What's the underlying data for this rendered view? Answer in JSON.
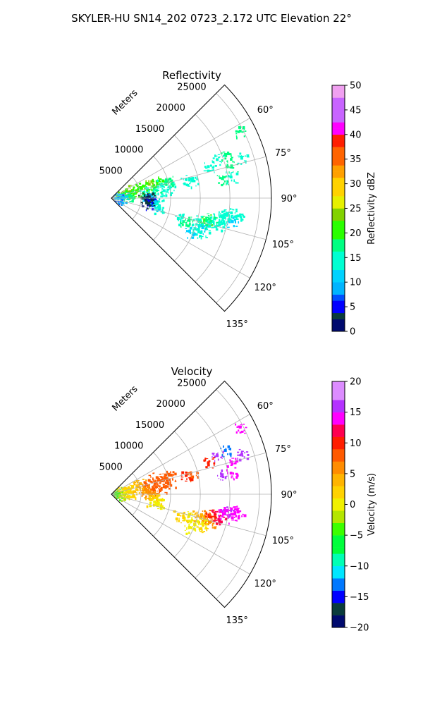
{
  "figure": {
    "title": "SKYLER-HU  SN14_202  0723_2.172 UTC Elevation 22°"
  },
  "chart_data": [
    {
      "type": "heatmap",
      "title": "Reflectivity",
      "radial_label": "Meters",
      "range_ticks": [
        5000,
        10000,
        15000,
        20000,
        25000
      ],
      "range_tick_labels": [
        "5000",
        "10000",
        "15000",
        "20000",
        "25000"
      ],
      "range_max": 27000,
      "azimuth_range": [
        45,
        135
      ],
      "azimuth_ticks": [
        60,
        75,
        90,
        105,
        120,
        135
      ],
      "azimuth_tick_labels": [
        "60°",
        "75°",
        "90°",
        "105°",
        "120°",
        "135°"
      ],
      "grid": true,
      "colorbar": {
        "label": "Reflectivity dBZ",
        "min": 0,
        "max": 50,
        "ticks": [
          0,
          5,
          10,
          15,
          20,
          25,
          30,
          35,
          40,
          45,
          50
        ],
        "tick_labels": [
          "0",
          "5",
          "10",
          "15",
          "20",
          "25",
          "30",
          "35",
          "40",
          "45",
          "50"
        ],
        "stops": [
          [
            0,
            "#000a6e"
          ],
          [
            2,
            "#0a3c3c"
          ],
          [
            4,
            "#0000ff"
          ],
          [
            6,
            "#0050ff"
          ],
          [
            8,
            "#00b4ff"
          ],
          [
            10,
            "#00d2ff"
          ],
          [
            13,
            "#00ffd2"
          ],
          [
            16,
            "#00ff82"
          ],
          [
            19,
            "#2aff00"
          ],
          [
            22,
            "#82d200"
          ],
          [
            25,
            "#e6f000"
          ],
          [
            28,
            "#ffd200"
          ],
          [
            31,
            "#ffa000"
          ],
          [
            34,
            "#ff6400"
          ],
          [
            37,
            "#ff1e00"
          ],
          [
            40,
            "#ff00ff"
          ],
          [
            43,
            "#c864ff"
          ],
          [
            47,
            "#f0a0f0"
          ],
          [
            50,
            "#fff0ff"
          ]
        ]
      },
      "cells": [
        {
          "az": 62.5,
          "r": 24500,
          "v": 16
        },
        {
          "az": 70,
          "r": 19000,
          "v": 15
        },
        {
          "az": 69,
          "r": 20600,
          "v": 17
        },
        {
          "az": 72,
          "r": 17200,
          "v": 14
        },
        {
          "az": 73,
          "r": 23000,
          "v": 15
        },
        {
          "az": 75,
          "r": 21000,
          "v": 16
        },
        {
          "az": 80,
          "r": 20500,
          "v": 15
        },
        {
          "az": 80,
          "r": 19000,
          "v": 16
        },
        {
          "az": 78,
          "r": 14000,
          "v": 14
        },
        {
          "az": 76,
          "r": 13000,
          "v": 13
        },
        {
          "az": 79,
          "r": 10000,
          "v": 15
        },
        {
          "az": 82,
          "r": 9000,
          "v": 14
        },
        {
          "az": 72,
          "r": 10400,
          "v": 18
        },
        {
          "az": 74,
          "r": 9500,
          "v": 16
        },
        {
          "az": 70,
          "r": 8200,
          "v": 20
        },
        {
          "az": 70,
          "r": 6800,
          "v": 22
        },
        {
          "az": 70,
          "r": 5200,
          "v": 21
        },
        {
          "az": 70,
          "r": 3800,
          "v": 24
        },
        {
          "az": 70,
          "r": 2400,
          "v": 23
        },
        {
          "az": 68,
          "r": 1200,
          "v": 20
        },
        {
          "az": 75,
          "r": 8800,
          "v": 15
        },
        {
          "az": 76,
          "r": 7600,
          "v": 17
        },
        {
          "az": 78,
          "r": 6400,
          "v": 19
        },
        {
          "az": 80,
          "r": 5600,
          "v": 14
        },
        {
          "az": 84,
          "r": 7200,
          "v": 13
        },
        {
          "az": 86,
          "r": 6000,
          "v": 12
        },
        {
          "az": 74,
          "r": 4600,
          "v": 21
        },
        {
          "az": 76,
          "r": 3200,
          "v": 20
        },
        {
          "az": 78,
          "r": 2000,
          "v": 22
        },
        {
          "az": 82,
          "r": 2600,
          "v": 18
        },
        {
          "az": 85,
          "r": 3400,
          "v": 16
        },
        {
          "az": 88,
          "r": 2200,
          "v": 12
        },
        {
          "az": 90,
          "r": 1400,
          "v": 9
        },
        {
          "az": 93,
          "r": 1000,
          "v": 7
        },
        {
          "az": 95,
          "r": 700,
          "v": 12
        },
        {
          "az": 90,
          "r": 6600,
          "v": 4
        },
        {
          "az": 92,
          "r": 6500,
          "v": 8
        },
        {
          "az": 88,
          "r": 6400,
          "v": 3
        },
        {
          "az": 90,
          "r": 5300,
          "v": 2
        },
        {
          "az": 94,
          "r": 6000,
          "v": 1
        },
        {
          "az": 98,
          "r": 6800,
          "v": 5
        },
        {
          "az": 100,
          "r": 7400,
          "v": 12
        },
        {
          "az": 97,
          "r": 7800,
          "v": 13
        },
        {
          "az": 101,
          "r": 8100,
          "v": 14
        },
        {
          "az": 98,
          "r": 6400,
          "v": 3
        },
        {
          "az": 108,
          "r": 12800,
          "v": 17
        },
        {
          "az": 106,
          "r": 13600,
          "v": 16
        },
        {
          "az": 107,
          "r": 11800,
          "v": 15
        },
        {
          "az": 105,
          "r": 15600,
          "v": 18
        },
        {
          "az": 103,
          "r": 16200,
          "v": 20
        },
        {
          "az": 102,
          "r": 16900,
          "v": 16
        },
        {
          "az": 101,
          "r": 17800,
          "v": 15
        },
        {
          "az": 99,
          "r": 19000,
          "v": 14
        },
        {
          "az": 97,
          "r": 20400,
          "v": 15
        },
        {
          "az": 98,
          "r": 19700,
          "v": 14
        },
        {
          "az": 100,
          "r": 19200,
          "v": 14
        },
        {
          "az": 103,
          "r": 17200,
          "v": 16
        },
        {
          "az": 104,
          "r": 15000,
          "v": 15
        },
        {
          "az": 108,
          "r": 16200,
          "v": 12
        },
        {
          "az": 106,
          "r": 17200,
          "v": 13
        },
        {
          "az": 104,
          "r": 18800,
          "v": 14
        },
        {
          "az": 110,
          "r": 15000,
          "v": 14
        },
        {
          "az": 111,
          "r": 16200,
          "v": 13
        },
        {
          "az": 113,
          "r": 14300,
          "v": 12
        },
        {
          "az": 101,
          "r": 20800,
          "v": 12
        },
        {
          "az": 98,
          "r": 21600,
          "v": 13
        }
      ]
    },
    {
      "type": "heatmap",
      "title": "Velocity",
      "radial_label": "Meters",
      "range_ticks": [
        5000,
        10000,
        15000,
        20000,
        25000
      ],
      "range_tick_labels": [
        "5000",
        "10000",
        "15000",
        "20000",
        "25000"
      ],
      "range_max": 27000,
      "azimuth_range": [
        45,
        135
      ],
      "azimuth_ticks": [
        60,
        75,
        90,
        105,
        120,
        135
      ],
      "azimuth_tick_labels": [
        "60°",
        "75°",
        "90°",
        "105°",
        "120°",
        "135°"
      ],
      "grid": true,
      "colorbar": {
        "label": "Velocity (m/s)",
        "min": -20,
        "max": 20,
        "ticks": [
          -20,
          -15,
          -10,
          -5,
          0,
          5,
          10,
          15,
          20
        ],
        "tick_labels": [
          "−20",
          "−15",
          "−10",
          "−5",
          "0",
          "5",
          "10",
          "15",
          "20"
        ],
        "stops": [
          [
            -20,
            "#000a6e"
          ],
          [
            -18,
            "#0a3c3c"
          ],
          [
            -16,
            "#0000ff"
          ],
          [
            -14,
            "#0078ff"
          ],
          [
            -12,
            "#00e6ff"
          ],
          [
            -10,
            "#00ffb4"
          ],
          [
            -8,
            "#00ff3c"
          ],
          [
            -5,
            "#3cff00"
          ],
          [
            -3,
            "#b4e600"
          ],
          [
            -1,
            "#f0f000"
          ],
          [
            1,
            "#ffd200"
          ],
          [
            3,
            "#ffb400"
          ],
          [
            5,
            "#ff8c00"
          ],
          [
            7,
            "#ff5a00"
          ],
          [
            9,
            "#ff1e00"
          ],
          [
            11,
            "#ff0050"
          ],
          [
            13,
            "#ff00ff"
          ],
          [
            15,
            "#b432ff"
          ],
          [
            17,
            "#dc8cff"
          ],
          [
            20,
            "#f0dcf0"
          ]
        ]
      },
      "cells": [
        {
          "az": 62.5,
          "r": 24500,
          "v": 14
        },
        {
          "az": 70,
          "r": 19000,
          "v": 15
        },
        {
          "az": 69,
          "r": 20600,
          "v": -13
        },
        {
          "az": 72,
          "r": 17200,
          "v": 9
        },
        {
          "az": 73,
          "r": 23000,
          "v": 15
        },
        {
          "az": 75,
          "r": 21000,
          "v": 14
        },
        {
          "az": 80,
          "r": 20500,
          "v": 13
        },
        {
          "az": 80,
          "r": 19000,
          "v": 15
        },
        {
          "az": 78,
          "r": 14000,
          "v": 8
        },
        {
          "az": 76,
          "r": 13000,
          "v": 9
        },
        {
          "az": 79,
          "r": 10000,
          "v": 7
        },
        {
          "az": 82,
          "r": 9000,
          "v": 8
        },
        {
          "az": 72,
          "r": 10400,
          "v": 8
        },
        {
          "az": 74,
          "r": 9500,
          "v": 7
        },
        {
          "az": 70,
          "r": 8200,
          "v": 8
        },
        {
          "az": 70,
          "r": 6800,
          "v": 7
        },
        {
          "az": 70,
          "r": 5200,
          "v": 4
        },
        {
          "az": 70,
          "r": 3800,
          "v": 2
        },
        {
          "az": 70,
          "r": 2400,
          "v": 1
        },
        {
          "az": 68,
          "r": 1200,
          "v": -2
        },
        {
          "az": 75,
          "r": 8800,
          "v": 8
        },
        {
          "az": 76,
          "r": 7600,
          "v": 7
        },
        {
          "az": 78,
          "r": 6400,
          "v": 7
        },
        {
          "az": 80,
          "r": 5600,
          "v": 6
        },
        {
          "az": 84,
          "r": 7200,
          "v": 7
        },
        {
          "az": 86,
          "r": 6000,
          "v": 6
        },
        {
          "az": 74,
          "r": 4600,
          "v": 3
        },
        {
          "az": 76,
          "r": 3200,
          "v": 2
        },
        {
          "az": 78,
          "r": 2000,
          "v": 1
        },
        {
          "az": 82,
          "r": 2600,
          "v": 1
        },
        {
          "az": 85,
          "r": 3400,
          "v": 2
        },
        {
          "az": 88,
          "r": 2200,
          "v": 0
        },
        {
          "az": 90,
          "r": 1400,
          "v": -3
        },
        {
          "az": 93,
          "r": 1000,
          "v": -4
        },
        {
          "az": 95,
          "r": 700,
          "v": -5
        },
        {
          "az": 90,
          "r": 6600,
          "v": 5
        },
        {
          "az": 92,
          "r": 6500,
          "v": 4
        },
        {
          "az": 88,
          "r": 6400,
          "v": 6
        },
        {
          "az": 98,
          "r": 6800,
          "v": 1
        },
        {
          "az": 100,
          "r": 7400,
          "v": 0
        },
        {
          "az": 97,
          "r": 7800,
          "v": 1
        },
        {
          "az": 101,
          "r": 8100,
          "v": 0
        },
        {
          "az": 108,
          "r": 12800,
          "v": 1
        },
        {
          "az": 106,
          "r": 13600,
          "v": 0
        },
        {
          "az": 107,
          "r": 11800,
          "v": 1
        },
        {
          "az": 105,
          "r": 15600,
          "v": 2
        },
        {
          "az": 103,
          "r": 16200,
          "v": 6
        },
        {
          "az": 102,
          "r": 16900,
          "v": 8
        },
        {
          "az": 101,
          "r": 17800,
          "v": 11
        },
        {
          "az": 99,
          "r": 19000,
          "v": 13
        },
        {
          "az": 97,
          "r": 20400,
          "v": 14
        },
        {
          "az": 98,
          "r": 19700,
          "v": 15
        },
        {
          "az": 100,
          "r": 19200,
          "v": 13
        },
        {
          "az": 103,
          "r": 17200,
          "v": 9
        },
        {
          "az": 104,
          "r": 15000,
          "v": 4
        },
        {
          "az": 108,
          "r": 16200,
          "v": 0
        },
        {
          "az": 106,
          "r": 17200,
          "v": 5
        },
        {
          "az": 104,
          "r": 18800,
          "v": 12
        },
        {
          "az": 110,
          "r": 15000,
          "v": 0
        },
        {
          "az": 111,
          "r": 16200,
          "v": 1
        },
        {
          "az": 113,
          "r": 14300,
          "v": 0
        },
        {
          "az": 101,
          "r": 20800,
          "v": 13
        },
        {
          "az": 98,
          "r": 21600,
          "v": 14
        }
      ]
    }
  ]
}
